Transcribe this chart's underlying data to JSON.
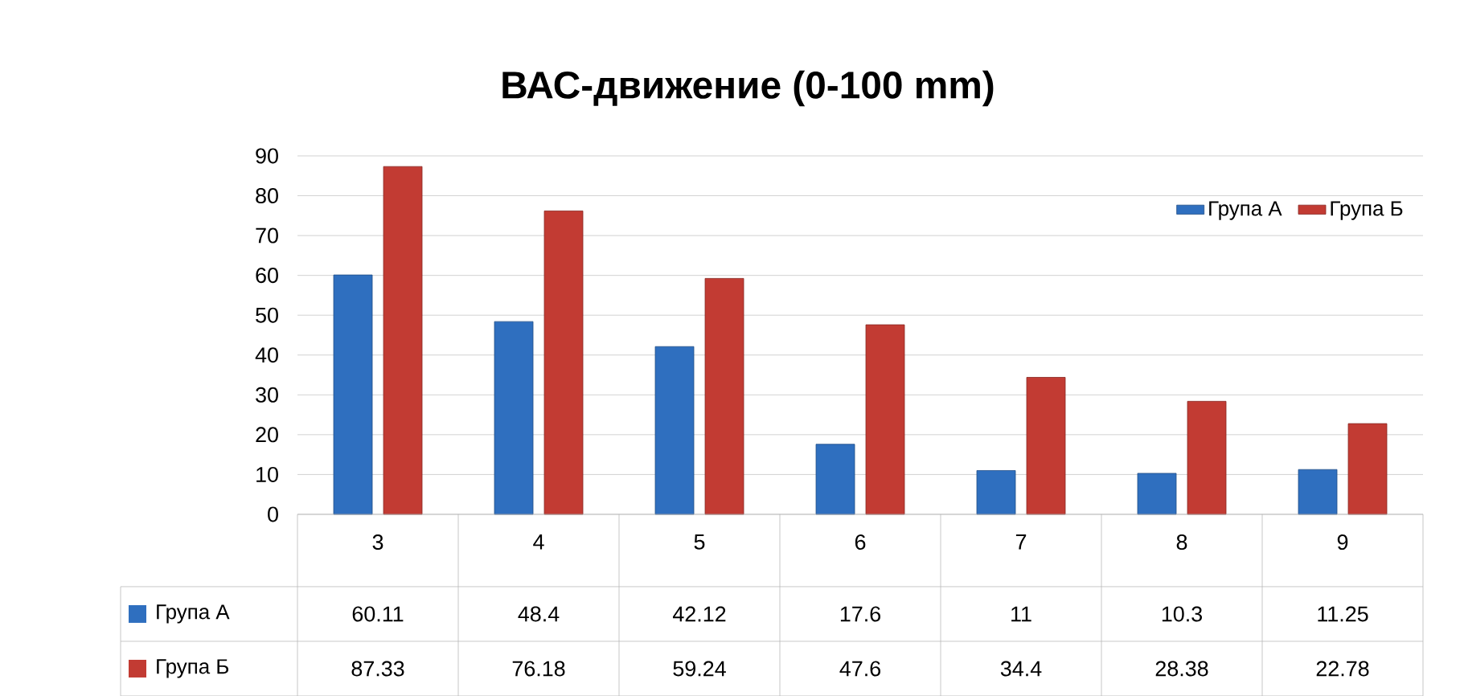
{
  "chart_data": {
    "type": "bar",
    "title": "ВАС-движение (0-100 mm)",
    "categories": [
      "3",
      "4",
      "5",
      "6",
      "7",
      "8",
      "9"
    ],
    "series": [
      {
        "name": "Група А",
        "color": "#2f6fbf",
        "values": [
          60.11,
          48.4,
          42.12,
          17.6,
          11,
          10.3,
          11.25
        ]
      },
      {
        "name": "Група Б",
        "color": "#c23b33",
        "values": [
          87.33,
          76.18,
          59.24,
          47.6,
          34.4,
          28.38,
          22.78
        ]
      }
    ],
    "ylim": [
      0,
      90
    ],
    "yticks": [
      0,
      10,
      20,
      30,
      40,
      50,
      60,
      70,
      80,
      90
    ],
    "grid": "y",
    "legend": "top right",
    "data_labels": true
  }
}
